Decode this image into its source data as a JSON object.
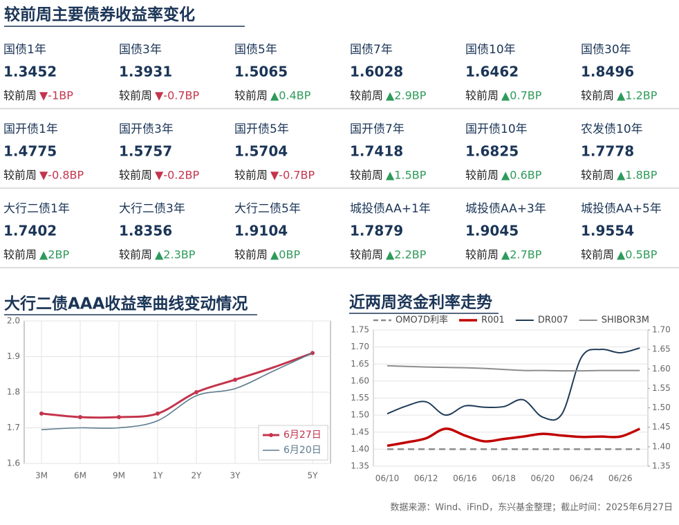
{
  "header": {
    "title": "较前周主要债券收益率变化"
  },
  "change_label": "较前周",
  "bonds": {
    "rows": [
      [
        {
          "name": "国债1年",
          "value": "1.3452",
          "change": "▼-1BP"
        },
        {
          "name": "国债3年",
          "value": "1.3931",
          "change": "▼-0.7BP"
        },
        {
          "name": "国债5年",
          "value": "1.5065",
          "change": "▲0.4BP"
        },
        {
          "name": "国债7年",
          "value": "1.6028",
          "change": "▲2.9BP"
        },
        {
          "name": "国债10年",
          "value": "1.6462",
          "change": "▲0.7BP"
        },
        {
          "name": "国债30年",
          "value": "1.8496",
          "change": "▲1.2BP"
        }
      ],
      [
        {
          "name": "国开债1年",
          "value": "1.4775",
          "change": "▼-0.8BP"
        },
        {
          "name": "国开债3年",
          "value": "1.5757",
          "change": "▼-0.2BP"
        },
        {
          "name": "国开债5年",
          "value": "1.5704",
          "change": "▼-0.7BP"
        },
        {
          "name": "国开债7年",
          "value": "1.7418",
          "change": "▲1.5BP"
        },
        {
          "name": "国开债10年",
          "value": "1.6825",
          "change": "▲0.6BP"
        },
        {
          "name": "农发债10年",
          "value": "1.7778",
          "change": "▲1.8BP"
        }
      ],
      [
        {
          "name": "大行二债1年",
          "value": "1.7402",
          "change": "▲2BP"
        },
        {
          "name": "大行二债3年",
          "value": "1.8356",
          "change": "▲2.3BP"
        },
        {
          "name": "大行二债5年",
          "value": "1.9104",
          "change": "▲0BP"
        },
        {
          "name": "城投债AA+1年",
          "value": "1.7879",
          "change": "▲2.2BP"
        },
        {
          "name": "城投债AA+3年",
          "value": "1.9045",
          "change": "▲2.7BP"
        },
        {
          "name": "城投债AA+5年",
          "value": "1.9554",
          "change": "▲0.5BP"
        }
      ]
    ]
  },
  "chart_data": [
    {
      "type": "line",
      "title": "大行二债AAA收益率曲线变动情况",
      "categories": [
        "3M",
        "6M",
        "9M",
        "1Y",
        "2Y",
        "3Y",
        null,
        "5Y"
      ],
      "series": [
        {
          "name": "6月27日",
          "color": "#c4344c",
          "markers": true,
          "linewidth": 3,
          "values": [
            1.74,
            1.73,
            1.73,
            1.74,
            1.8,
            1.835,
            1.87,
            1.91
          ]
        },
        {
          "name": "6月20日",
          "color": "#5c7b8e",
          "linewidth": 1.6,
          "values": [
            1.695,
            1.7,
            1.7,
            1.72,
            1.79,
            1.81,
            1.86,
            1.91
          ]
        }
      ],
      "ylim": [
        1.6,
        2.0
      ],
      "yticks": [
        1.6,
        1.7,
        1.8,
        1.9,
        {
          "value": 2.0,
          "label": "2.0"
        }
      ],
      "grid": true,
      "legend": "lower right"
    },
    {
      "type": "line",
      "title": "近两周资金利率走势",
      "categories": [
        "06/10",
        null,
        "06/12",
        null,
        "06/16",
        null,
        "06/18",
        null,
        "06/20",
        null,
        "06/24",
        null,
        "06/26",
        null
      ],
      "series": [
        {
          "name": "OMO7D利率",
          "color": "#8c8c8c",
          "style": "dashed",
          "linewidth": 2.5,
          "values": [
            1.4,
            1.4,
            1.4,
            1.4,
            1.4,
            1.4,
            1.4,
            1.4,
            1.4,
            1.4,
            1.4,
            1.4,
            1.4,
            1.4
          ]
        },
        {
          "name": "R001",
          "color": "#c00000",
          "linewidth": 3.5,
          "values": [
            1.41,
            1.42,
            1.432,
            1.46,
            1.44,
            1.423,
            1.43,
            1.437,
            1.445,
            1.44,
            1.436,
            1.437,
            1.437,
            1.46
          ]
        },
        {
          "name": "DR007",
          "color": "#1f3b57",
          "linewidth": 2,
          "values": [
            1.504,
            1.527,
            1.539,
            1.5,
            1.527,
            1.523,
            1.525,
            1.545,
            1.494,
            1.504,
            1.67,
            1.693,
            1.683,
            1.697
          ]
        },
        {
          "name": "SHIBOR3M",
          "color": "#8c8c8c",
          "linewidth": 2,
          "values": [
            1.645,
            1.643,
            1.641,
            1.64,
            1.639,
            1.637,
            1.634,
            1.631,
            1.631,
            1.63,
            1.63,
            1.631,
            1.631,
            1.631
          ]
        }
      ],
      "ylim": [
        1.35,
        1.75
      ],
      "yticks": [
        1.35,
        {
          "value": 1.4,
          "label": "1.40"
        },
        1.45,
        {
          "value": 1.5,
          "label": "1.50"
        },
        1.55,
        {
          "value": 1.6,
          "label": "1.60"
        },
        1.65,
        {
          "value": 1.7,
          "label": "1.70"
        },
        1.75
      ],
      "y2lim": [
        1.35,
        1.7
      ],
      "y2ticks": [
        1.35,
        {
          "value": 1.4,
          "label": "1.40"
        },
        1.45,
        {
          "value": 1.5,
          "label": "1.50"
        },
        1.55,
        {
          "value": 1.6,
          "label": "1.60"
        },
        1.65,
        {
          "value": 1.7,
          "label": "1.70"
        }
      ],
      "grid": true,
      "legend": "upper"
    }
  ],
  "footer": {
    "note": "数据来源：Wind、iFinD，东兴基金整理；截止时间：2025年6月27日"
  }
}
